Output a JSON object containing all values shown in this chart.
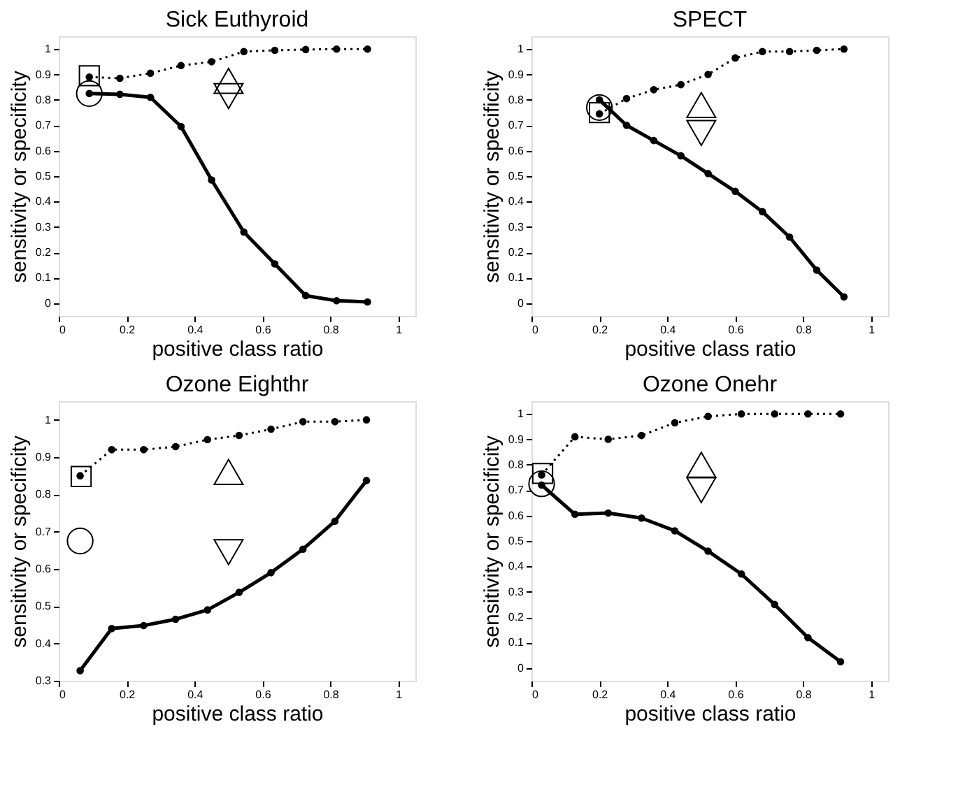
{
  "chart_data": [
    {
      "type": "line",
      "title": "Sick Euthyroid",
      "xlabel": "positive class ratio",
      "ylabel": "sensitivity or specificity",
      "xlim": [
        0,
        1.05
      ],
      "ylim": [
        -0.05,
        1.05
      ],
      "xticks": [
        0,
        0.2,
        0.4,
        0.6,
        0.8,
        1
      ],
      "yticks": [
        0,
        0.1,
        0.2,
        0.3,
        0.4,
        0.5,
        0.6,
        0.7,
        0.8,
        0.9,
        1
      ],
      "series": [
        {
          "color": "#000000",
          "line_style": "dotted",
          "marker": "circle",
          "x": [
            0.09,
            0.18,
            0.27,
            0.36,
            0.45,
            0.545,
            0.636,
            0.727,
            0.818,
            0.909
          ],
          "values": [
            0.89,
            0.885,
            0.905,
            0.935,
            0.95,
            0.99,
            0.995,
            0.998,
            1,
            1
          ]
        },
        {
          "color": "#000000",
          "line_style": "solid",
          "marker": "circle",
          "x": [
            0.09,
            0.18,
            0.27,
            0.36,
            0.45,
            0.545,
            0.636,
            0.727,
            0.818,
            0.909
          ],
          "values": [
            0.825,
            0.822,
            0.81,
            0.695,
            0.485,
            0.28,
            0.155,
            0.03,
            0.01,
            0.005
          ]
        },
        {
          "type": "scatter",
          "color": "#000000",
          "marker": "square",
          "x": [
            0.09
          ],
          "values": [
            0.895
          ]
        },
        {
          "type": "scatter",
          "color": "#000000",
          "marker": "circle",
          "x": [
            0.09
          ],
          "values": [
            0.825
          ]
        },
        {
          "type": "scatter",
          "color": "#000000",
          "marker": "triangle",
          "x": [
            0.5
          ],
          "values": [
            0.875
          ]
        },
        {
          "type": "scatter",
          "color": "#000000",
          "marker": "triangle-down",
          "x": [
            0.5
          ],
          "values": [
            0.815
          ]
        }
      ]
    },
    {
      "type": "line",
      "title": "SPECT",
      "xlabel": "positive class ratio",
      "ylabel": "sensitivity or specificity",
      "xlim": [
        0,
        1.05
      ],
      "ylim": [
        -0.05,
        1.05
      ],
      "xticks": [
        0,
        0.2,
        0.4,
        0.6,
        0.8,
        1
      ],
      "yticks": [
        0,
        0.1,
        0.2,
        0.3,
        0.4,
        0.5,
        0.6,
        0.7,
        0.8,
        0.9,
        1
      ],
      "series": [
        {
          "color": "#000000",
          "line_style": "dotted",
          "marker": "circle",
          "x": [
            0.2,
            0.28,
            0.36,
            0.44,
            0.52,
            0.6,
            0.68,
            0.76,
            0.84,
            0.92
          ],
          "values": [
            0.745,
            0.805,
            0.84,
            0.86,
            0.9,
            0.965,
            0.99,
            0.99,
            0.995,
            1
          ]
        },
        {
          "color": "#000000",
          "line_style": "solid",
          "marker": "circle",
          "x": [
            0.2,
            0.28,
            0.36,
            0.44,
            0.52,
            0.6,
            0.68,
            0.76,
            0.84,
            0.92
          ],
          "values": [
            0.8,
            0.7,
            0.64,
            0.58,
            0.51,
            0.44,
            0.36,
            0.26,
            0.13,
            0.025
          ]
        },
        {
          "type": "scatter",
          "color": "#000000",
          "marker": "square",
          "x": [
            0.2
          ],
          "values": [
            0.75
          ]
        },
        {
          "type": "scatter",
          "color": "#000000",
          "marker": "circle",
          "x": [
            0.2
          ],
          "values": [
            0.77
          ]
        },
        {
          "type": "scatter",
          "color": "#000000",
          "marker": "triangle",
          "x": [
            0.5
          ],
          "values": [
            0.78
          ]
        },
        {
          "type": "scatter",
          "color": "#000000",
          "marker": "triangle-down",
          "x": [
            0.5
          ],
          "values": [
            0.67
          ]
        }
      ]
    },
    {
      "type": "line",
      "title": "Ozone Eighthr",
      "xlabel": "positive class ratio",
      "ylabel": "sensitivity or specificity",
      "xlim": [
        0,
        1.05
      ],
      "ylim": [
        0.3,
        1.05
      ],
      "xticks": [
        0,
        0.2,
        0.4,
        0.6,
        0.8,
        1
      ],
      "yticks": [
        0.3,
        0.4,
        0.5,
        0.6,
        0.7,
        0.8,
        0.9,
        1
      ],
      "series": [
        {
          "color": "#000000",
          "line_style": "dotted",
          "marker": "circle",
          "x": [
            0.063,
            0.156,
            0.25,
            0.344,
            0.438,
            0.531,
            0.625,
            0.719,
            0.813,
            0.906
          ],
          "values": [
            0.85,
            0.92,
            0.92,
            0.928,
            0.947,
            0.958,
            0.975,
            0.995,
            0.995,
            1
          ]
        },
        {
          "color": "#000000",
          "line_style": "solid",
          "marker": "circle",
          "x": [
            0.063,
            0.156,
            0.25,
            0.344,
            0.438,
            0.531,
            0.625,
            0.719,
            0.813,
            0.906
          ],
          "values": [
            0.327,
            0.44,
            0.448,
            0.465,
            0.49,
            0.537,
            0.59,
            0.653,
            0.728,
            0.837
          ]
        },
        {
          "type": "scatter",
          "color": "#000000",
          "marker": "square",
          "x": [
            0.066
          ],
          "values": [
            0.848
          ]
        },
        {
          "type": "scatter",
          "color": "#000000",
          "marker": "circle",
          "x": [
            0.063
          ],
          "values": [
            0.675
          ]
        },
        {
          "type": "scatter",
          "color": "#000000",
          "marker": "triangle",
          "x": [
            0.5
          ],
          "values": [
            0.86
          ]
        },
        {
          "type": "scatter",
          "color": "#000000",
          "marker": "triangle-down",
          "x": [
            0.5
          ],
          "values": [
            0.645
          ]
        }
      ]
    },
    {
      "type": "line",
      "title": "Ozone Onehr",
      "xlabel": "positive class ratio",
      "ylabel": "sensitivity or specificity",
      "xlim": [
        0,
        1.05
      ],
      "ylim": [
        -0.05,
        1.05
      ],
      "xticks": [
        0,
        0.2,
        0.4,
        0.6,
        0.8,
        1
      ],
      "yticks": [
        0,
        0.1,
        0.2,
        0.3,
        0.4,
        0.5,
        0.6,
        0.7,
        0.8,
        0.9,
        1
      ],
      "series": [
        {
          "color": "#000000",
          "line_style": "dotted",
          "marker": "circle",
          "x": [
            0.03,
            0.128,
            0.226,
            0.324,
            0.422,
            0.52,
            0.618,
            0.716,
            0.814,
            0.91
          ],
          "values": [
            0.76,
            0.91,
            0.9,
            0.915,
            0.965,
            0.99,
            1,
            1,
            1,
            1
          ]
        },
        {
          "color": "#000000",
          "line_style": "solid",
          "marker": "circle",
          "x": [
            0.03,
            0.128,
            0.226,
            0.324,
            0.422,
            0.52,
            0.618,
            0.716,
            0.814,
            0.91
          ],
          "values": [
            0.72,
            0.605,
            0.61,
            0.59,
            0.54,
            0.46,
            0.37,
            0.25,
            0.12,
            0.025
          ]
        },
        {
          "type": "scatter",
          "color": "#000000",
          "marker": "square",
          "x": [
            0.033
          ],
          "values": [
            0.766
          ]
        },
        {
          "type": "scatter",
          "color": "#000000",
          "marker": "circle",
          "x": [
            0.03
          ],
          "values": [
            0.725
          ]
        },
        {
          "type": "scatter",
          "color": "#000000",
          "marker": "triangle",
          "x": [
            0.5
          ],
          "values": [
            0.8
          ]
        },
        {
          "type": "scatter",
          "color": "#000000",
          "marker": "triangle-down",
          "x": [
            0.5
          ],
          "values": [
            0.7
          ]
        }
      ]
    }
  ]
}
